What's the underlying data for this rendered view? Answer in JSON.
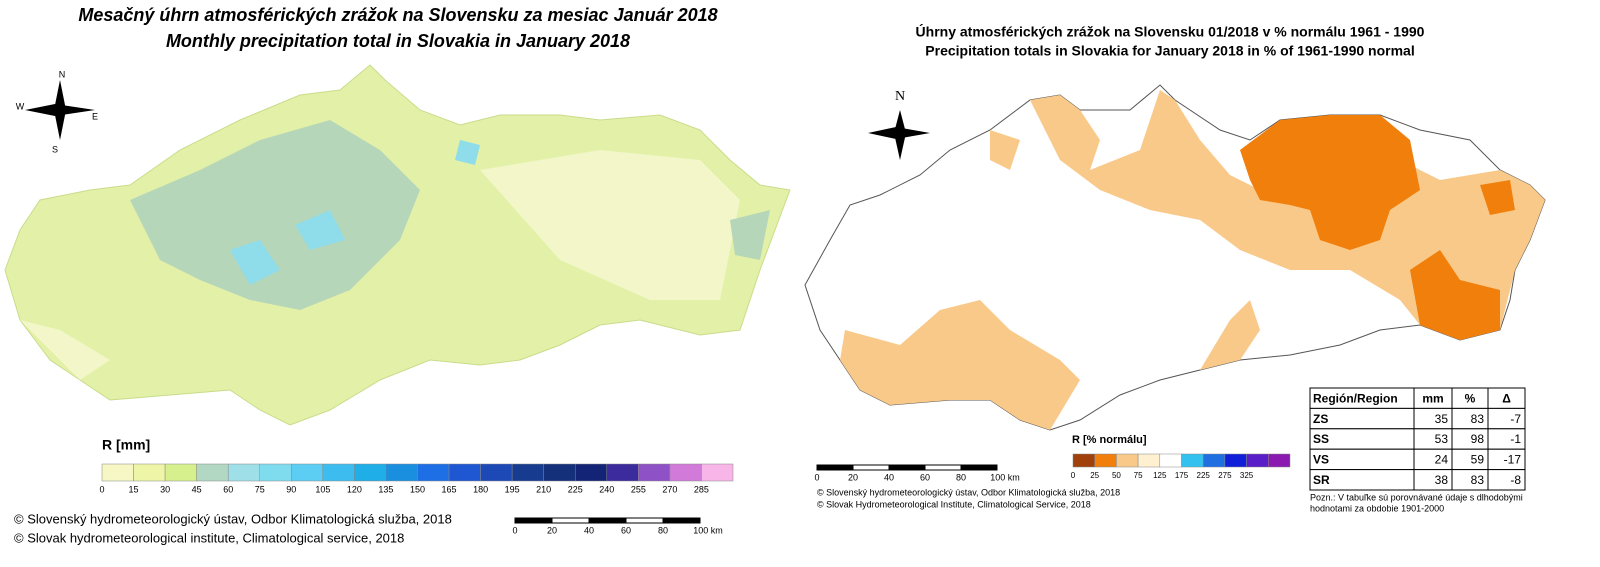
{
  "left_map": {
    "title": [
      "Mesačný úhrn atmosférických zrážok na Slovensku za mesiac Január 2018",
      "Monthly precipitation total in Slovakia in January 2018"
    ],
    "compass": [
      "N",
      "W",
      "E",
      "S"
    ],
    "legend": {
      "title": "R [mm]",
      "labels": [
        0,
        15,
        30,
        45,
        60,
        75,
        90,
        105,
        120,
        135,
        150,
        165,
        180,
        195,
        210,
        225,
        240,
        255,
        270,
        285
      ],
      "colors": [
        "#f6f7c5",
        "#eef5a6",
        "#d6f08d",
        "#b2d8c3",
        "#9fe0e8",
        "#7fdcef",
        "#5ccdf3",
        "#3dbdef",
        "#20aee8",
        "#1a8fe0",
        "#1e6fe6",
        "#1f56d2",
        "#1c49b6",
        "#173b8f",
        "#14307a",
        "#132375",
        "#3b2b9c",
        "#8e52c6",
        "#d27ad9",
        "#f8b6e8"
      ]
    },
    "scale": [
      "0",
      "20",
      "40",
      "60",
      "80",
      "100 km"
    ],
    "credits": [
      "© Slovenský hydrometeorologický ústav, Odbor Klimatologická služba, 2018",
      "© Slovak hydrometeorological institute, Climatological service, 2018"
    ]
  },
  "right_map": {
    "title": [
      "Úhrny atmosférických zrážok na Slovensku 01/2018 v % normálu 1961 - 1990",
      "Precipitation totals in Slovakia for January 2018 in % of 1961-1990 normal"
    ],
    "compass": [
      "N"
    ],
    "legend": {
      "title": "R [% normálu]",
      "labels": [
        0,
        25,
        50,
        75,
        125,
        175,
        225,
        275,
        325
      ],
      "colors": [
        "#a0400a",
        "#f07f0c",
        "#f9c98a",
        "#fff0d0",
        "#ffffff",
        "#33c2f0",
        "#1f6fe0",
        "#1020d8",
        "#5a1ec8",
        "#8a1ab0"
      ]
    },
    "scale": [
      "0",
      "20",
      "40",
      "60",
      "80",
      "100 km"
    ],
    "credits": [
      "© Slovenský hydrometeorologický ústav, Odbor Klimatologická služba, 2018",
      "© Slovak Hydrometeorological Institute, Climatological Service, 2018"
    ]
  },
  "table": {
    "header": [
      "Región/Region",
      "mm",
      "%",
      "Δ"
    ],
    "rows": [
      [
        "ZS",
        35,
        83,
        -7
      ],
      [
        "SS",
        53,
        98,
        -1
      ],
      [
        "VS",
        24,
        59,
        -17
      ],
      [
        "SR",
        38,
        83,
        -8
      ]
    ]
  },
  "note": [
    "Pozn.: V tabuľke sú porovnávané údaje s dlhodobými",
    "hodnotami za obdobie 1901-2000"
  ]
}
